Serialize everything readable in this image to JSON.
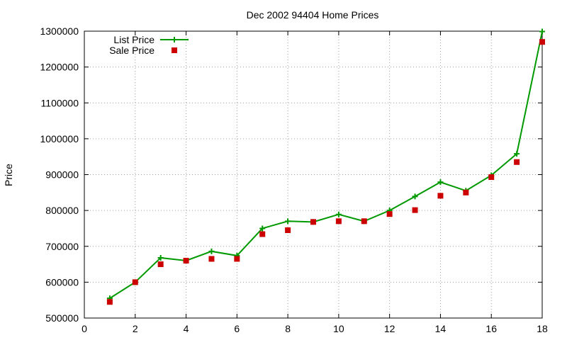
{
  "chart_data": {
    "type": "line",
    "title": "Dec 2002 94404 Home Prices",
    "xlabel": "",
    "ylabel": "Price",
    "xlim": [
      0,
      18
    ],
    "ylim": [
      500000,
      1300000
    ],
    "x_ticks": [
      "0",
      "2",
      "4",
      "6",
      "8",
      "10",
      "12",
      "14",
      "16",
      "18"
    ],
    "y_ticks": [
      "500000",
      "600000",
      "700000",
      "800000",
      "900000",
      "1000000",
      "1100000",
      "1200000",
      "1300000"
    ],
    "grid": true,
    "legend_position": "top-left",
    "series": [
      {
        "name": "List Price",
        "style": "line with plus markers",
        "color": "#009900",
        "x": [
          1,
          2,
          3,
          4,
          5,
          6,
          7,
          8,
          9,
          10,
          11,
          12,
          13,
          14,
          15,
          16,
          17,
          18
        ],
        "y": [
          555000,
          600000,
          668000,
          660000,
          686000,
          674000,
          750000,
          770000,
          768000,
          789000,
          770000,
          800000,
          839000,
          879000,
          855000,
          898000,
          958000,
          1299000
        ]
      },
      {
        "name": "Sale Price",
        "style": "square markers",
        "color": "#cc0000",
        "x": [
          1,
          2,
          3,
          4,
          5,
          6,
          7,
          8,
          9,
          10,
          11,
          12,
          13,
          14,
          15,
          16,
          17,
          18
        ],
        "y": [
          545000,
          600000,
          650000,
          660000,
          665000,
          665000,
          734000,
          745000,
          768000,
          770000,
          770000,
          790000,
          801000,
          841000,
          850000,
          893000,
          935000,
          1270000
        ]
      }
    ]
  }
}
